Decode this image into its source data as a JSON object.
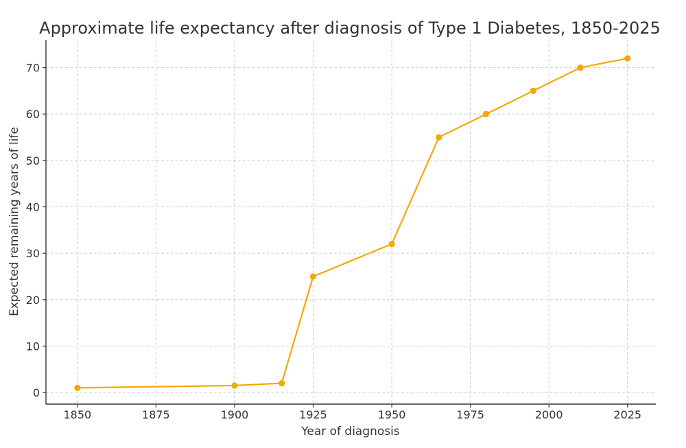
{
  "chart_data": {
    "type": "line",
    "title": "Approximate life expectancy after diagnosis of Type 1 Diabetes, 1850-2025",
    "xlabel": "Year of diagnosis",
    "ylabel": "Expected remaining years of life",
    "xlim": [
      1840,
      2034
    ],
    "ylim": [
      -2.5,
      76
    ],
    "xticks": [
      1850,
      1875,
      1900,
      1925,
      1950,
      1975,
      2000,
      2025
    ],
    "yticks": [
      0,
      10,
      20,
      30,
      40,
      50,
      60,
      70
    ],
    "grid": true,
    "color": "#f5a800",
    "series": [
      {
        "x": [
          1850,
          1900,
          1915,
          1925,
          1950,
          1965,
          1980,
          1995,
          2010,
          2025
        ],
        "y": [
          1,
          1.5,
          2,
          25,
          32,
          55,
          60,
          65,
          70,
          72
        ]
      }
    ]
  }
}
